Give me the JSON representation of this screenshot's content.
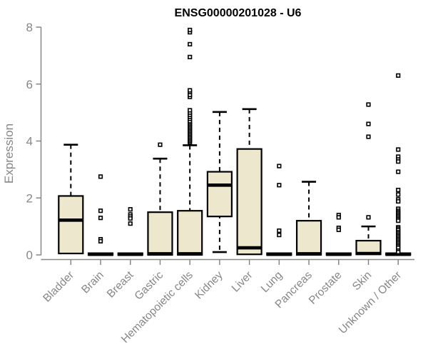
{
  "colors": {
    "axis": "#878787",
    "box_fill": "#EDE8CD",
    "box_stroke": "#000000",
    "background": "#ffffff",
    "title": "#000000"
  },
  "chart_data": {
    "type": "boxplot",
    "title": "ENSG00000201028 - U6",
    "ylabel": "Expression",
    "xlabel": "",
    "ylim": [
      0,
      8
    ],
    "yticks": [
      0,
      2,
      4,
      6,
      8
    ],
    "grid": false,
    "categories": [
      "Bladder",
      "Brain",
      "Breast",
      "Gastric",
      "Hematopoietic cells",
      "Kidney",
      "Liver",
      "Lung",
      "Pancreas",
      "Prostate",
      "Skin",
      "Unknown / Other"
    ],
    "boxes": [
      {
        "label": "Bladder",
        "whisker_low": 0.05,
        "q1": 0.05,
        "median": 1.22,
        "q3": 2.07,
        "whisker_high": 3.87,
        "outliers": []
      },
      {
        "label": "Brain",
        "whisker_low": 0,
        "q1": 0,
        "median": 0.02,
        "q3": 0.06,
        "whisker_high": 0.06,
        "outliers": [
          2.75,
          1.55,
          1.3,
          0.55,
          0.48
        ]
      },
      {
        "label": "Breast",
        "whisker_low": 0,
        "q1": 0,
        "median": 0.02,
        "q3": 0.06,
        "whisker_high": 0.06,
        "outliers": [
          1.6,
          1.42,
          1.35,
          1.28,
          1.1
        ]
      },
      {
        "label": "Gastric",
        "whisker_low": 0,
        "q1": 0,
        "median": 0.04,
        "q3": 1.5,
        "whisker_high": 3.38,
        "outliers": [
          3.87
        ]
      },
      {
        "label": "Hematopoietic cells",
        "whisker_low": 0,
        "q1": 0,
        "median": 0.04,
        "q3": 1.55,
        "whisker_high": 3.85,
        "outliers": [
          3.95,
          4.0,
          4.05,
          4.1,
          4.15,
          4.2,
          4.25,
          4.3,
          4.35,
          4.4,
          4.45,
          4.5,
          4.55,
          4.6,
          4.65,
          4.7,
          4.78,
          4.85,
          4.92,
          5.0,
          5.08,
          5.55,
          5.62,
          5.72,
          5.78,
          6.95,
          7.4,
          7.82,
          7.9
        ]
      },
      {
        "label": "Kidney",
        "whisker_low": 0.1,
        "q1": 1.35,
        "median": 2.45,
        "q3": 2.92,
        "whisker_high": 5.02,
        "outliers": []
      },
      {
        "label": "Liver",
        "whisker_low": 0.02,
        "q1": 0.02,
        "median": 0.25,
        "q3": 3.72,
        "whisker_high": 5.12,
        "outliers": []
      },
      {
        "label": "Lung",
        "whisker_low": 0,
        "q1": 0,
        "median": 0.02,
        "q3": 0.06,
        "whisker_high": 0.06,
        "outliers": [
          3.12,
          2.45,
          0.85,
          0.7
        ]
      },
      {
        "label": "Pancreas",
        "whisker_low": 0,
        "q1": 0,
        "median": 0.04,
        "q3": 1.2,
        "whisker_high": 2.57,
        "outliers": []
      },
      {
        "label": "Prostate",
        "whisker_low": 0,
        "q1": 0,
        "median": 0.02,
        "q3": 0.06,
        "whisker_high": 0.06,
        "outliers": [
          1.4,
          1.32,
          0.95,
          0.88
        ]
      },
      {
        "label": "Skin",
        "whisker_low": 0,
        "q1": 0.02,
        "median": 0.05,
        "q3": 0.5,
        "whisker_high": 1.0,
        "outliers": [
          5.28,
          4.6,
          4.15,
          1.32
        ]
      },
      {
        "label": "Unknown / Other",
        "whisker_low": 0,
        "q1": 0,
        "median": 0.02,
        "q3": 0.06,
        "whisker_high": 0.06,
        "outliers": [
          6.3,
          3.7,
          3.45,
          3.35,
          3.28,
          2.92,
          2.28,
          2.12,
          1.95,
          1.88,
          1.62,
          1.55,
          1.5,
          1.45,
          1.4,
          1.35,
          1.3,
          1.25,
          1.2,
          0.97,
          0.92,
          0.87,
          0.8,
          0.75,
          0.7,
          0.65,
          0.6,
          0.55,
          0.5,
          0.45,
          0.4,
          0.35,
          0.3,
          0.25,
          0.15,
          0.1
        ]
      }
    ]
  }
}
